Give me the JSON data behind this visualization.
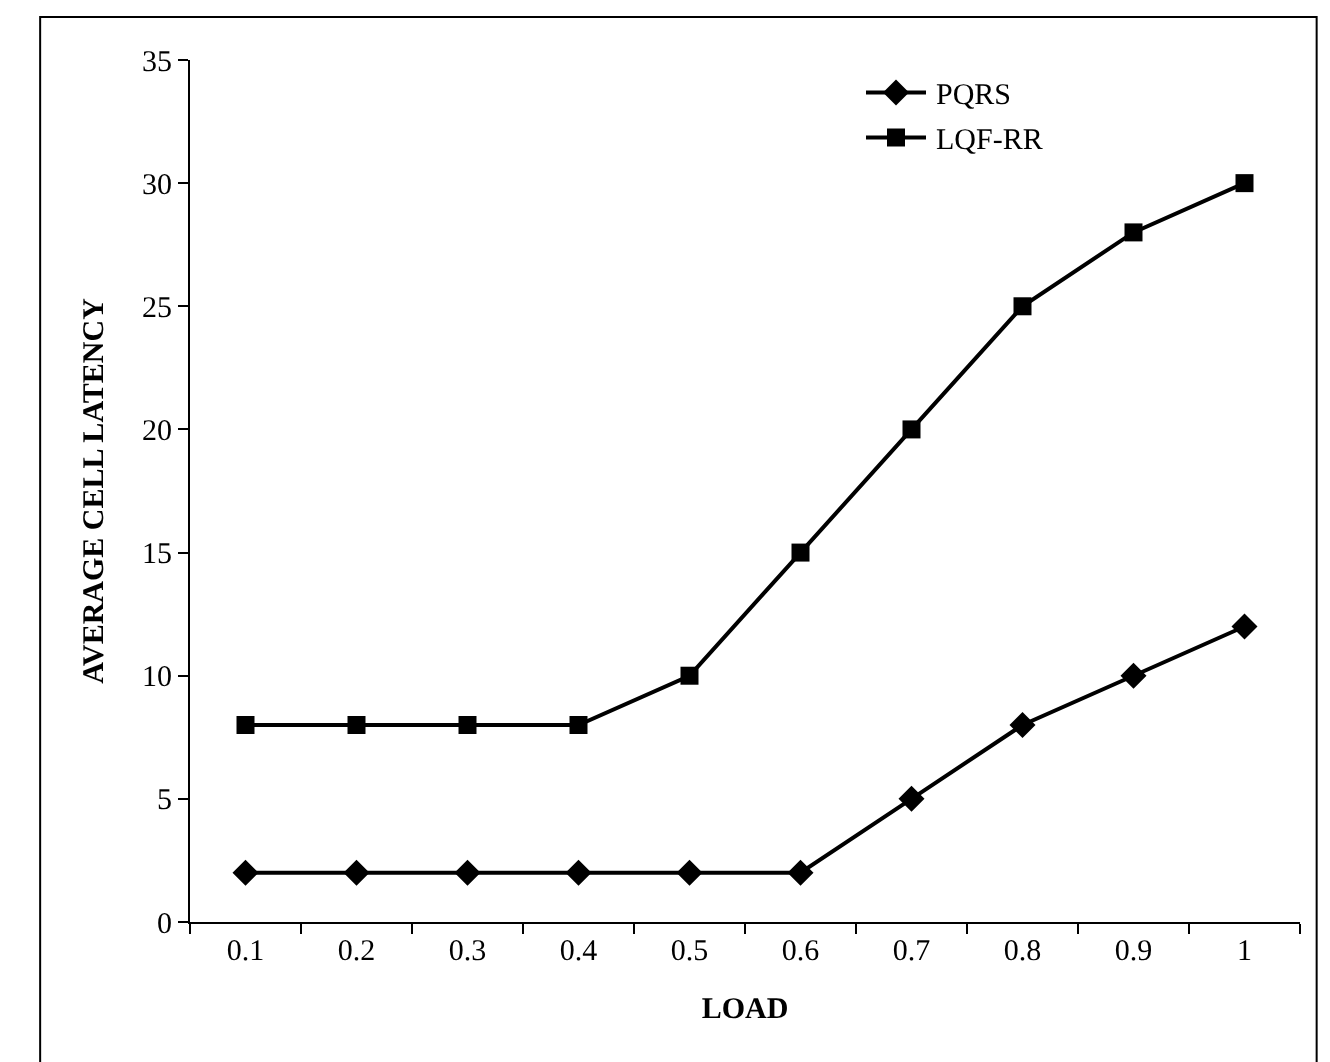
{
  "chart_data": {
    "type": "line",
    "xlabel": "LOAD",
    "ylabel": "AVERAGE CELL LATENCY",
    "categories": [
      "0.1",
      "0.2",
      "0.3",
      "0.4",
      "0.5",
      "0.6",
      "0.7",
      "0.8",
      "0.9",
      "1"
    ],
    "series": [
      {
        "name": "PQRS",
        "color": "#000000",
        "marker": "diamond",
        "values": [
          2,
          2,
          2,
          2,
          2,
          2,
          5,
          8,
          10,
          12
        ]
      },
      {
        "name": "LQF-RR",
        "color": "#000000",
        "marker": "square",
        "values": [
          8,
          8,
          8,
          8,
          10,
          15,
          20,
          25,
          28,
          30
        ]
      }
    ],
    "ylim": [
      0,
      35
    ],
    "yticks": [
      0,
      5,
      10,
      15,
      20,
      25,
      30,
      35
    ],
    "grid": false,
    "legend": "top right",
    "line_style": "solid"
  }
}
